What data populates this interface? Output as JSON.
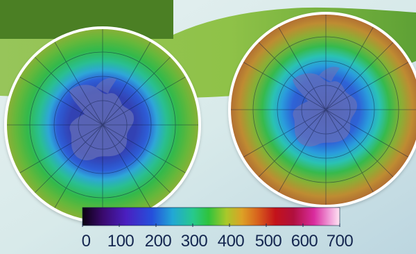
{
  "image": {
    "subject": "Antarctic ozone maps",
    "background_colors": [
      "#5e9b2a",
      "#8dbf4d",
      "#d8ecef",
      "#bfdde6"
    ],
    "globe_outline": "#ffffff"
  },
  "colorbar": {
    "ticks": [
      "0",
      "100",
      "200",
      "300",
      "400",
      "500",
      "600",
      "700"
    ],
    "text_color": "#14264f",
    "gradient": [
      "#100012",
      "#3b0b6f",
      "#4b1fc1",
      "#2b4fdc",
      "#22a7d5",
      "#26c78a",
      "#2ec43b",
      "#a8c92a",
      "#dca226",
      "#d8641d",
      "#c2121a",
      "#b0103d",
      "#d92a9d",
      "#ef96d6",
      "#ffe4f2"
    ]
  },
  "globes": [
    {
      "name": "left-globe",
      "ring_colors": [
        "#2d3f9f",
        "#3552b8",
        "#2d63d6",
        "#2aa7d8",
        "#27bd8a",
        "#31b945",
        "#6ab43a",
        "#9aaa36"
      ]
    },
    {
      "name": "right-globe",
      "ring_colors": [
        "#2f4aa8",
        "#2e67d7",
        "#2aa0dc",
        "#2ac3b5",
        "#39b94a",
        "#8aaf35",
        "#c28a2f",
        "#b8632f"
      ]
    }
  ]
}
